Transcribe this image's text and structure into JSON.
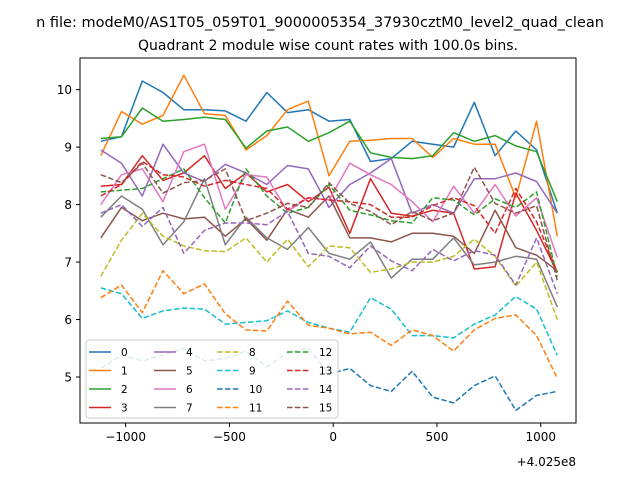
{
  "chart_data": {
    "type": "line",
    "suptitle": "n file: modeM0/AS1T05_059T01_9000005354_37930cztM0_level2_quad_clean",
    "title": "Quadrant 2 module wise count rates with 100.0s bins.",
    "xlabel": "",
    "ylabel": "",
    "x_offset_label": "+4.025e8",
    "xlim": [
      -1220,
      1170
    ],
    "ylim": [
      4.2,
      10.55
    ],
    "xticks": [
      -1000,
      -500,
      0,
      500,
      1000
    ],
    "xtick_labels": [
      "−1000",
      "−500",
      "0",
      "500",
      "1000"
    ],
    "yticks": [
      5,
      6,
      7,
      8,
      9,
      10
    ],
    "ytick_labels": [
      "5",
      "6",
      "7",
      "8",
      "9",
      "10"
    ],
    "legend_position": "lower-left",
    "legend_columns": 4,
    "x": [
      -1120,
      -1020,
      -920,
      -820,
      -720,
      -620,
      -520,
      -420,
      -320,
      -220,
      -120,
      -20,
      80,
      180,
      280,
      380,
      480,
      580,
      680,
      780,
      880,
      980,
      1080
    ],
    "series": [
      {
        "name": "0",
        "color": "#1f77b4",
        "dash": "solid",
        "values": [
          9.1,
          9.18,
          10.15,
          9.95,
          9.65,
          9.65,
          9.63,
          9.45,
          9.95,
          9.6,
          9.65,
          9.45,
          9.48,
          8.75,
          8.8,
          9.1,
          9.05,
          9.0,
          9.78,
          8.85,
          9.28,
          8.95,
          7.85
        ]
      },
      {
        "name": "1",
        "color": "#ff7f0e",
        "dash": "solid",
        "values": [
          8.85,
          9.62,
          9.4,
          9.55,
          10.25,
          9.58,
          9.55,
          8.95,
          9.2,
          9.65,
          9.8,
          8.5,
          9.1,
          9.12,
          9.15,
          9.15,
          8.82,
          9.15,
          9.05,
          9.05,
          8.12,
          9.45,
          7.45
        ]
      },
      {
        "name": "2",
        "color": "#2ca02c",
        "dash": "solid",
        "values": [
          9.15,
          9.18,
          9.68,
          9.45,
          9.48,
          9.52,
          9.48,
          8.98,
          9.28,
          9.35,
          9.1,
          9.25,
          9.45,
          8.9,
          8.82,
          8.8,
          8.85,
          9.25,
          9.1,
          9.2,
          9.02,
          8.92,
          8.05
        ]
      },
      {
        "name": "3",
        "color": "#d62728",
        "dash": "solid",
        "values": [
          8.32,
          8.35,
          8.85,
          8.42,
          8.55,
          8.85,
          8.28,
          8.55,
          8.22,
          8.35,
          8.05,
          8.3,
          7.5,
          8.45,
          7.85,
          7.8,
          7.9,
          7.85,
          6.88,
          6.92,
          8.2,
          7.55,
          6.82
        ]
      },
      {
        "name": "4",
        "color": "#9467bd",
        "dash": "solid",
        "values": [
          8.95,
          8.72,
          8.15,
          9.05,
          8.55,
          8.4,
          8.7,
          8.55,
          8.35,
          8.68,
          8.62,
          7.95,
          8.35,
          8.55,
          8.8,
          7.85,
          8.0,
          7.85,
          8.45,
          8.45,
          8.55,
          8.4,
          7.85
        ]
      },
      {
        "name": "5",
        "color": "#8c564b",
        "dash": "solid",
        "values": [
          7.42,
          7.95,
          7.72,
          7.85,
          7.75,
          7.78,
          7.45,
          7.75,
          7.38,
          7.92,
          7.78,
          8.15,
          7.42,
          7.42,
          7.35,
          7.5,
          7.5,
          7.45,
          7.15,
          7.9,
          7.25,
          7.12,
          6.85
        ]
      },
      {
        "name": "6",
        "color": "#e377c2",
        "dash": "solid",
        "values": [
          8.0,
          8.52,
          8.62,
          8.05,
          8.92,
          9.05,
          7.92,
          8.52,
          8.48,
          7.88,
          8.12,
          8.08,
          8.72,
          8.52,
          8.35,
          8.05,
          7.7,
          8.32,
          7.85,
          8.35,
          7.8,
          8.12,
          7.08
        ]
      },
      {
        "name": "7",
        "color": "#7f7f7f",
        "dash": "solid",
        "values": [
          7.78,
          8.15,
          7.92,
          7.3,
          7.7,
          8.45,
          7.3,
          7.78,
          7.42,
          7.22,
          7.6,
          7.15,
          7.05,
          7.35,
          6.72,
          7.05,
          7.05,
          7.42,
          6.95,
          7.0,
          7.1,
          7.05,
          6.22
        ]
      },
      {
        "name": "8",
        "color": "#bcbd22",
        "dash": "dashed",
        "values": [
          6.75,
          7.38,
          7.85,
          7.45,
          7.28,
          7.2,
          7.18,
          7.42,
          7.0,
          7.4,
          6.92,
          7.28,
          7.25,
          6.82,
          6.88,
          7.0,
          7.0,
          7.1,
          7.4,
          7.1,
          6.58,
          7.0,
          6.0
        ]
      },
      {
        "name": "9",
        "color": "#17becf",
        "dash": "dashed",
        "values": [
          6.55,
          6.45,
          6.02,
          6.15,
          6.2,
          6.18,
          5.92,
          5.95,
          5.98,
          6.15,
          5.95,
          5.85,
          5.78,
          6.38,
          6.18,
          5.72,
          5.72,
          5.68,
          5.92,
          6.08,
          6.4,
          6.18,
          5.38
        ]
      },
      {
        "name": "10",
        "color": "#1f77b4",
        "dash": "dashed",
        "values": [
          5.15,
          5.38,
          5.28,
          5.38,
          5.5,
          5.28,
          5.32,
          5.45,
          5.18,
          5.42,
          5.5,
          5.05,
          5.15,
          4.85,
          4.75,
          5.1,
          4.65,
          4.55,
          4.85,
          5.02,
          4.42,
          4.68,
          4.75
        ]
      },
      {
        "name": "11",
        "color": "#ff7f0e",
        "dash": "dashed",
        "values": [
          6.38,
          6.6,
          6.12,
          6.85,
          6.45,
          6.62,
          6.1,
          5.82,
          5.8,
          6.32,
          5.9,
          5.85,
          5.75,
          5.78,
          5.55,
          5.82,
          5.72,
          5.45,
          5.82,
          6.02,
          6.08,
          5.72,
          4.98
        ]
      },
      {
        "name": "12",
        "color": "#2ca02c",
        "dash": "dashed",
        "values": [
          8.22,
          8.25,
          8.28,
          8.45,
          8.62,
          8.12,
          7.68,
          8.62,
          8.15,
          7.85,
          7.95,
          8.35,
          7.9,
          7.82,
          7.72,
          7.68,
          8.12,
          8.08,
          7.82,
          8.1,
          7.95,
          8.22,
          6.75
        ]
      },
      {
        "name": "13",
        "color": "#d62728",
        "dash": "dashed",
        "values": [
          8.15,
          8.35,
          8.75,
          8.52,
          8.48,
          8.32,
          8.42,
          8.35,
          8.28,
          7.92,
          8.12,
          8.08,
          8.05,
          8.0,
          7.78,
          7.78,
          7.98,
          8.12,
          7.98,
          7.5,
          8.28,
          7.7,
          6.82
        ]
      },
      {
        "name": "14",
        "color": "#9467bd",
        "dash": "dashed",
        "values": [
          7.85,
          8.0,
          7.62,
          7.95,
          7.15,
          7.55,
          7.68,
          7.68,
          7.65,
          7.88,
          7.15,
          7.1,
          6.9,
          7.28,
          7.02,
          6.85,
          7.22,
          7.02,
          7.2,
          7.12,
          6.6,
          7.42,
          6.45
        ]
      },
      {
        "name": "15",
        "color": "#8c564b",
        "dash": "dashed",
        "values": [
          8.52,
          8.38,
          8.72,
          8.2,
          8.38,
          8.42,
          8.62,
          7.72,
          7.85,
          8.02,
          7.95,
          8.38,
          8.02,
          7.88,
          7.65,
          7.88,
          7.72,
          7.85,
          8.65,
          8.02,
          7.85,
          7.98,
          6.68
        ]
      }
    ]
  }
}
